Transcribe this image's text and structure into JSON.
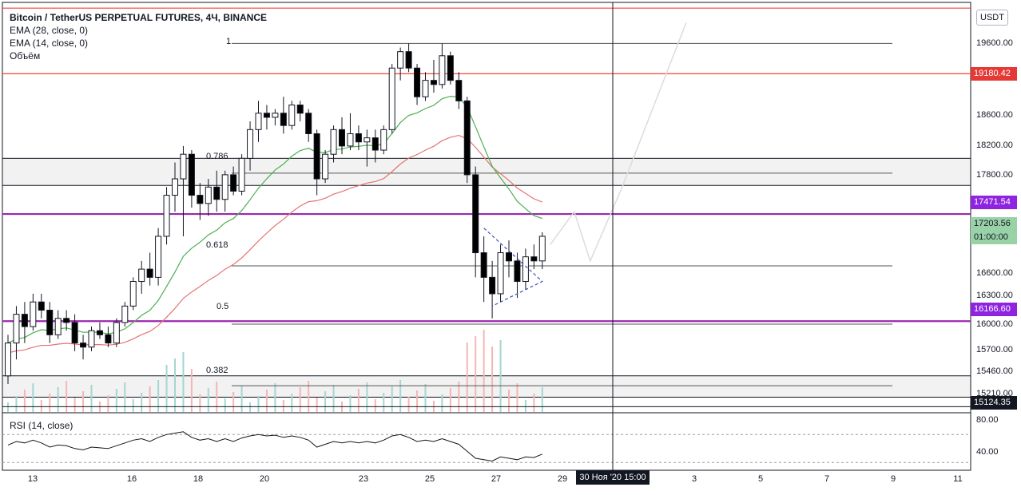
{
  "header": {
    "title": "Bitcoin / TetherUS PERPETUAL FUTURES, 4Ч, BINANCE",
    "ema28": "EMA (28, close, 0)",
    "ema14": "EMA (14, close, 0)",
    "volume": "Объём"
  },
  "currency_button": "USDT",
  "rsi_label": "RSI (14, close)",
  "price_axis": {
    "ticks": [
      "19600.00",
      "18600.00",
      "18200.00",
      "17800.00",
      "16600.00",
      "16300.00",
      "16000.00",
      "15700.00",
      "15460.00",
      "15210.00"
    ],
    "rsi_ticks": [
      "80.00",
      "40.00"
    ]
  },
  "price_labels": {
    "red_top": "19180.42",
    "purple_upper": "17471.54",
    "current_price": "17203.56",
    "countdown": "01:00:00",
    "purple_lower": "16166.60",
    "crosshair_price": "15124.35"
  },
  "fib_levels": [
    "1",
    "0.786",
    "0.618",
    "0.5",
    "0.382"
  ],
  "time_axis": {
    "ticks": [
      "13",
      "16",
      "18",
      "20",
      "23",
      "25",
      "27",
      "29",
      "3",
      "5",
      "7",
      "9",
      "11"
    ],
    "crosshair_label": "30 Ноя '20   15:00"
  },
  "colors": {
    "bull": "#ffffff",
    "bear": "#000000",
    "ema28": "#e57373",
    "ema14": "#4caf50",
    "resistance": "#f44336",
    "support": "#9c27b0",
    "pattern": "#3f51b5"
  },
  "chart_data": {
    "type": "candlestick",
    "symbol": "Bitcoin / TetherUS PERPETUAL FUTURES",
    "timeframe": "4Ч",
    "candles": [
      {
        "o": 15500,
        "h": 16000,
        "l": 15400,
        "c": 15900
      },
      {
        "o": 15900,
        "h": 16350,
        "l": 15700,
        "c": 16250
      },
      {
        "o": 16250,
        "h": 16400,
        "l": 15900,
        "c": 16100
      },
      {
        "o": 16100,
        "h": 16500,
        "l": 16050,
        "c": 16400
      },
      {
        "o": 16400,
        "h": 16500,
        "l": 16200,
        "c": 16300
      },
      {
        "o": 16300,
        "h": 16400,
        "l": 15900,
        "c": 16000
      },
      {
        "o": 16000,
        "h": 16300,
        "l": 15950,
        "c": 16200
      },
      {
        "o": 16200,
        "h": 16300,
        "l": 16050,
        "c": 16150
      },
      {
        "o": 16150,
        "h": 16250,
        "l": 15800,
        "c": 15900
      },
      {
        "o": 15900,
        "h": 16000,
        "l": 15700,
        "c": 15850
      },
      {
        "o": 15850,
        "h": 16100,
        "l": 15800,
        "c": 16050
      },
      {
        "o": 16050,
        "h": 16150,
        "l": 15950,
        "c": 16000
      },
      {
        "o": 16000,
        "h": 16100,
        "l": 15850,
        "c": 15900
      },
      {
        "o": 15900,
        "h": 16200,
        "l": 15850,
        "c": 16150
      },
      {
        "o": 16150,
        "h": 16400,
        "l": 16100,
        "c": 16350
      },
      {
        "o": 16350,
        "h": 16700,
        "l": 16300,
        "c": 16650
      },
      {
        "o": 16650,
        "h": 16900,
        "l": 16500,
        "c": 16800
      },
      {
        "o": 16800,
        "h": 17000,
        "l": 16600,
        "c": 16700
      },
      {
        "o": 16700,
        "h": 17300,
        "l": 16600,
        "c": 17200
      },
      {
        "o": 17200,
        "h": 17800,
        "l": 17100,
        "c": 17700
      },
      {
        "o": 17700,
        "h": 18100,
        "l": 17500,
        "c": 17900
      },
      {
        "o": 17900,
        "h": 18300,
        "l": 17200,
        "c": 18200
      },
      {
        "o": 18200,
        "h": 18250,
        "l": 17550,
        "c": 17700
      },
      {
        "o": 17700,
        "h": 17850,
        "l": 17400,
        "c": 17600
      },
      {
        "o": 17600,
        "h": 17900,
        "l": 17450,
        "c": 17800
      },
      {
        "o": 17800,
        "h": 18000,
        "l": 17500,
        "c": 17650
      },
      {
        "o": 17650,
        "h": 18000,
        "l": 17500,
        "c": 17950
      },
      {
        "o": 17950,
        "h": 18050,
        "l": 17700,
        "c": 17750
      },
      {
        "o": 17750,
        "h": 18200,
        "l": 17700,
        "c": 18150
      },
      {
        "o": 18150,
        "h": 18600,
        "l": 18000,
        "c": 18500
      },
      {
        "o": 18500,
        "h": 18850,
        "l": 18350,
        "c": 18700
      },
      {
        "o": 18700,
        "h": 18800,
        "l": 18500,
        "c": 18650
      },
      {
        "o": 18650,
        "h": 18750,
        "l": 18550,
        "c": 18700
      },
      {
        "o": 18700,
        "h": 18900,
        "l": 18450,
        "c": 18550
      },
      {
        "o": 18550,
        "h": 18850,
        "l": 18500,
        "c": 18800
      },
      {
        "o": 18800,
        "h": 18850,
        "l": 18600,
        "c": 18700
      },
      {
        "o": 18700,
        "h": 18750,
        "l": 18350,
        "c": 18450
      },
      {
        "o": 18450,
        "h": 18500,
        "l": 17700,
        "c": 17900
      },
      {
        "o": 17900,
        "h": 18250,
        "l": 17850,
        "c": 18200
      },
      {
        "o": 18200,
        "h": 18550,
        "l": 18100,
        "c": 18500
      },
      {
        "o": 18500,
        "h": 18650,
        "l": 18200,
        "c": 18300
      },
      {
        "o": 18300,
        "h": 18700,
        "l": 18250,
        "c": 18450
      },
      {
        "o": 18450,
        "h": 18550,
        "l": 18250,
        "c": 18350
      },
      {
        "o": 18350,
        "h": 18500,
        "l": 18050,
        "c": 18400
      },
      {
        "o": 18400,
        "h": 18500,
        "l": 18100,
        "c": 18250
      },
      {
        "o": 18250,
        "h": 18550,
        "l": 18200,
        "c": 18500
      },
      {
        "o": 18500,
        "h": 19300,
        "l": 18450,
        "c": 19250
      },
      {
        "o": 19250,
        "h": 19500,
        "l": 19100,
        "c": 19450
      },
      {
        "o": 19450,
        "h": 19550,
        "l": 19200,
        "c": 19250
      },
      {
        "o": 19250,
        "h": 19300,
        "l": 18800,
        "c": 18900
      },
      {
        "o": 18900,
        "h": 19200,
        "l": 18850,
        "c": 19100
      },
      {
        "o": 19100,
        "h": 19350,
        "l": 18950,
        "c": 19050
      },
      {
        "o": 19050,
        "h": 19550,
        "l": 19000,
        "c": 19400
      },
      {
        "o": 19400,
        "h": 19450,
        "l": 19050,
        "c": 19100
      },
      {
        "o": 19100,
        "h": 19200,
        "l": 18750,
        "c": 18850
      },
      {
        "o": 18850,
        "h": 18900,
        "l": 17850,
        "c": 17950
      },
      {
        "o": 17950,
        "h": 18050,
        "l": 16700,
        "c": 17000
      },
      {
        "o": 17000,
        "h": 17200,
        "l": 16400,
        "c": 16700
      },
      {
        "o": 16700,
        "h": 16900,
        "l": 16200,
        "c": 16500
      },
      {
        "o": 16500,
        "h": 17100,
        "l": 16400,
        "c": 17000
      },
      {
        "o": 17000,
        "h": 17150,
        "l": 16700,
        "c": 16900
      },
      {
        "o": 16900,
        "h": 17000,
        "l": 16450,
        "c": 16650
      },
      {
        "o": 16650,
        "h": 17050,
        "l": 16550,
        "c": 16950
      },
      {
        "o": 16950,
        "h": 17100,
        "l": 16800,
        "c": 16900
      },
      {
        "o": 16900,
        "h": 17250,
        "l": 16800,
        "c": 17200
      }
    ],
    "levels": {
      "resistance": [
        19980,
        19180.42
      ],
      "support_bands": [
        [
          17471.54
        ],
        [
          16166.6
        ]
      ],
      "fib": {
        "1": 19550,
        "0.786": 17970,
        "0.618": 16840,
        "0.5": 16130,
        "0.382": 15380
      }
    },
    "ylim": [
      15050,
      20050
    ],
    "rsi_ylim": [
      20,
      100
    ],
    "rsi_values": [
      55,
      60,
      58,
      62,
      58,
      52,
      55,
      54,
      50,
      48,
      52,
      51,
      50,
      54,
      58,
      62,
      64,
      60,
      66,
      70,
      72,
      74,
      66,
      62,
      64,
      60,
      64,
      60,
      65,
      68,
      70,
      68,
      69,
      66,
      68,
      66,
      62,
      52,
      56,
      60,
      58,
      60,
      58,
      60,
      58,
      62,
      68,
      70,
      66,
      60,
      62,
      60,
      64,
      60,
      56,
      46,
      36,
      34,
      32,
      38,
      36,
      34,
      38,
      37,
      42
    ]
  }
}
